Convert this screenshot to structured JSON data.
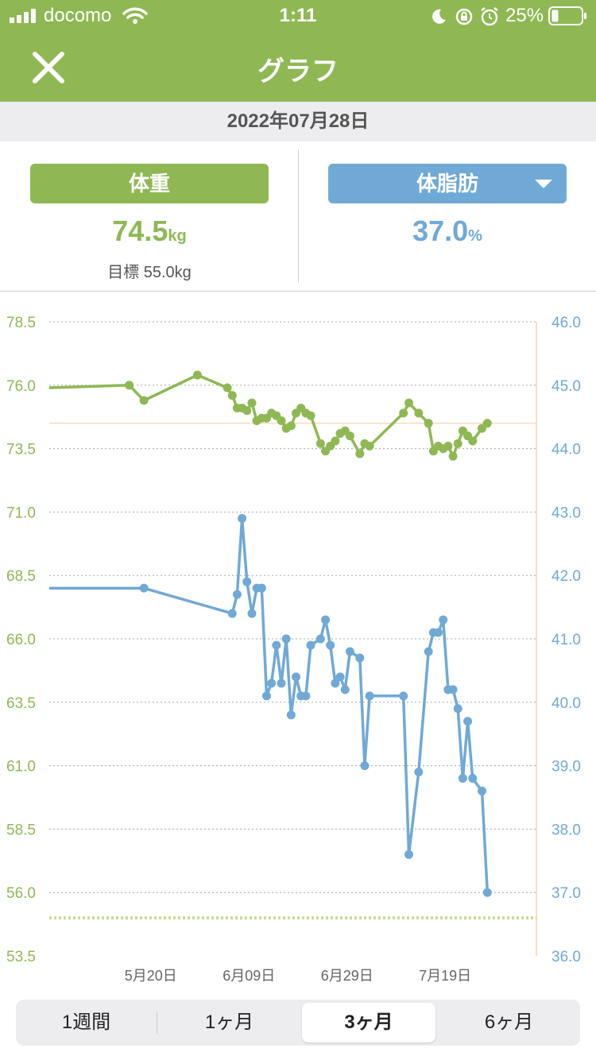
{
  "status_bar": {
    "carrier": "docomo",
    "time": "1:11",
    "battery": "25%"
  },
  "header": {
    "title": "グラフ"
  },
  "date_bar": {
    "date": "2022年07月28日"
  },
  "summary": {
    "weight": {
      "label": "体重",
      "value": "74.5",
      "unit": "kg",
      "goal": "目標 55.0kg"
    },
    "fat": {
      "label": "体脂肪",
      "value": "37.0",
      "unit": "%"
    }
  },
  "range_tabs": [
    {
      "label": "1週間",
      "active": false
    },
    {
      "label": "1ヶ月",
      "active": false
    },
    {
      "label": "3ヶ月",
      "active": true
    },
    {
      "label": "6ヶ月",
      "active": false
    }
  ],
  "chart_data": {
    "type": "line",
    "title": "",
    "x_ticks": [
      "5月20日",
      "6月09日",
      "6月29日",
      "7月19日"
    ],
    "x_tick_days": [
      20,
      40,
      60,
      80
    ],
    "x_range_days": [
      -0.7,
      98.6
    ],
    "y_left": {
      "range": [
        53.5,
        78.5
      ],
      "ticks": [
        "78.5",
        "76.0",
        "73.5",
        "71.0",
        "68.5",
        "66.0",
        "63.5",
        "61.0",
        "58.5",
        "56.0",
        "53.5"
      ],
      "color": "#8fb854"
    },
    "y_right": {
      "range": [
        36.0,
        46.0
      ],
      "ticks": [
        "46.0",
        "45.0",
        "44.0",
        "43.0",
        "42.0",
        "41.0",
        "40.0",
        "39.0",
        "38.0",
        "37.0",
        "36.0"
      ],
      "color": "#70a9d6"
    },
    "goal_line": {
      "value": 55.0,
      "color": "#c9dc8f"
    },
    "current_weight_line": {
      "value": 74.5,
      "color": "#f7dcc0"
    },
    "series": [
      {
        "color": "#8fb854",
        "axis": "left",
        "x": [
          -0.7,
          15.6,
          18.6,
          29.5,
          35.6,
          36.6,
          37.6,
          38.6,
          39.6,
          40.6,
          41.6,
          42.6,
          43.6,
          44.6,
          45.6,
          46.6,
          47.6,
          48.6,
          49.6,
          50.6,
          51.6,
          52.6,
          54.6,
          55.6,
          56.6,
          57.6,
          58.6,
          59.6,
          60.6,
          62.6,
          63.6,
          64.6,
          71.5,
          72.6,
          74.6,
          76.6,
          77.6,
          78.6,
          79.6,
          80.6,
          81.6,
          82.6,
          83.6,
          84.6,
          85.6,
          87.5,
          88.6
        ],
        "y": [
          75.9,
          76.0,
          75.4,
          76.4,
          75.9,
          75.6,
          75.1,
          75.1,
          75.0,
          75.3,
          74.6,
          74.7,
          74.7,
          74.9,
          74.8,
          74.6,
          74.3,
          74.4,
          74.9,
          75.1,
          74.9,
          74.8,
          73.7,
          73.4,
          73.6,
          73.8,
          74.1,
          74.2,
          74.0,
          73.3,
          73.7,
          73.6,
          74.9,
          75.3,
          74.9,
          74.5,
          73.4,
          73.6,
          73.5,
          73.6,
          73.2,
          73.7,
          74.2,
          74.0,
          73.8,
          74.3,
          74.5
        ]
      },
      {
        "color": "#70a9d6",
        "axis": "right",
        "x": [
          -0.7,
          18.6,
          36.6,
          37.6,
          38.6,
          39.6,
          40.6,
          41.6,
          42.6,
          43.6,
          44.6,
          45.6,
          46.6,
          47.6,
          48.6,
          49.6,
          50.6,
          51.6,
          52.6,
          54.6,
          55.6,
          56.6,
          57.6,
          58.6,
          59.6,
          60.6,
          62.6,
          63.6,
          64.6,
          71.5,
          72.6,
          74.6,
          76.6,
          77.6,
          78.6,
          79.6,
          80.6,
          81.6,
          82.6,
          83.6,
          84.6,
          85.6,
          87.5,
          88.6
        ],
        "y": [
          41.8,
          41.8,
          41.4,
          41.7,
          42.9,
          41.9,
          41.4,
          41.8,
          41.8,
          40.1,
          40.3,
          40.9,
          40.3,
          41.0,
          39.8,
          40.4,
          40.1,
          40.1,
          40.9,
          41.0,
          41.3,
          40.9,
          40.3,
          40.4,
          40.2,
          40.8,
          40.7,
          39.0,
          40.1,
          40.1,
          37.6,
          38.9,
          40.8,
          41.1,
          41.1,
          41.3,
          40.2,
          40.2,
          39.9,
          38.8,
          39.7,
          38.8,
          38.6,
          37.0
        ]
      }
    ]
  }
}
